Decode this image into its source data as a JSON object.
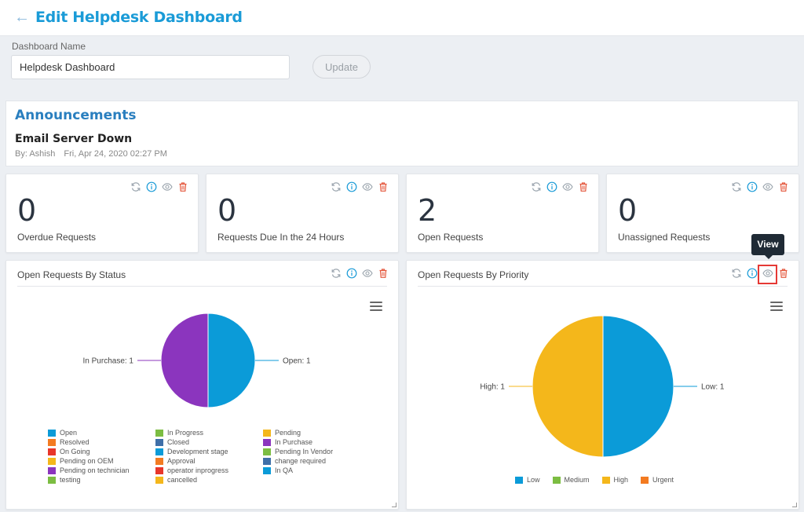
{
  "header": {
    "back_icon": "arrow-left-icon",
    "title": "Edit Helpdesk Dashboard"
  },
  "form": {
    "label": "Dashboard Name",
    "value": "Helpdesk Dashboard",
    "update_label": "Update"
  },
  "announcements": {
    "title": "Announcements",
    "item_title": "Email Server Down",
    "author": "By: Ashish",
    "datetime": "Fri, Apr 24, 2020 02:27 PM"
  },
  "stats": [
    {
      "value": "0",
      "label": "Overdue Requests"
    },
    {
      "value": "0",
      "label": "Requests Due In the 24 Hours"
    },
    {
      "value": "2",
      "label": "Open Requests"
    },
    {
      "value": "0",
      "label": "Unassigned Requests"
    }
  ],
  "tooltip": "View",
  "colors": {
    "brand": "#1a9bd7",
    "refresh": "#9aa4ad",
    "info": "#1a9bd7",
    "view": "#9aa4ad",
    "delete": "#e4573c"
  },
  "chart_data": [
    {
      "type": "pie",
      "title": "Open Requests By Status",
      "slices": [
        {
          "name": "Open",
          "value": 1,
          "color": "#0b9bd8",
          "label": "Open: 1"
        },
        {
          "name": "In Purchase",
          "value": 1,
          "color": "#8b35be",
          "label": "In Purchase: 1"
        }
      ],
      "legend": [
        {
          "name": "Open",
          "color": "#0b9bd8"
        },
        {
          "name": "Resolved",
          "color": "#f37b21"
        },
        {
          "name": "On Going",
          "color": "#e8362a"
        },
        {
          "name": "Pending on OEM",
          "color": "#f4b71b"
        },
        {
          "name": "Pending on technician",
          "color": "#8b35be"
        },
        {
          "name": "testing",
          "color": "#7cbd42"
        },
        {
          "name": "In Progress",
          "color": "#7cbd42"
        },
        {
          "name": "Closed",
          "color": "#3f6fa8"
        },
        {
          "name": "Development stage",
          "color": "#0b9bd8"
        },
        {
          "name": "Approval",
          "color": "#f37b21"
        },
        {
          "name": "operator inprogress",
          "color": "#e8362a"
        },
        {
          "name": "cancelled",
          "color": "#f4b71b"
        },
        {
          "name": "Pending",
          "color": "#f4b71b"
        },
        {
          "name": "In Purchase",
          "color": "#8b35be"
        },
        {
          "name": "Pending In Vendor",
          "color": "#7cbd42"
        },
        {
          "name": "change required",
          "color": "#3f6fa8"
        },
        {
          "name": "In QA",
          "color": "#0b9bd8"
        }
      ]
    },
    {
      "type": "pie",
      "title": "Open Requests By Priority",
      "slices": [
        {
          "name": "Low",
          "value": 1,
          "color": "#0b9bd8",
          "label": "Low: 1"
        },
        {
          "name": "High",
          "value": 1,
          "color": "#f4b71b",
          "label": "High: 1"
        }
      ],
      "legend": [
        {
          "name": "Low",
          "color": "#0b9bd8"
        },
        {
          "name": "Medium",
          "color": "#7cbd42"
        },
        {
          "name": "High",
          "color": "#f4b71b"
        },
        {
          "name": "Urgent",
          "color": "#f37b21"
        }
      ]
    }
  ]
}
